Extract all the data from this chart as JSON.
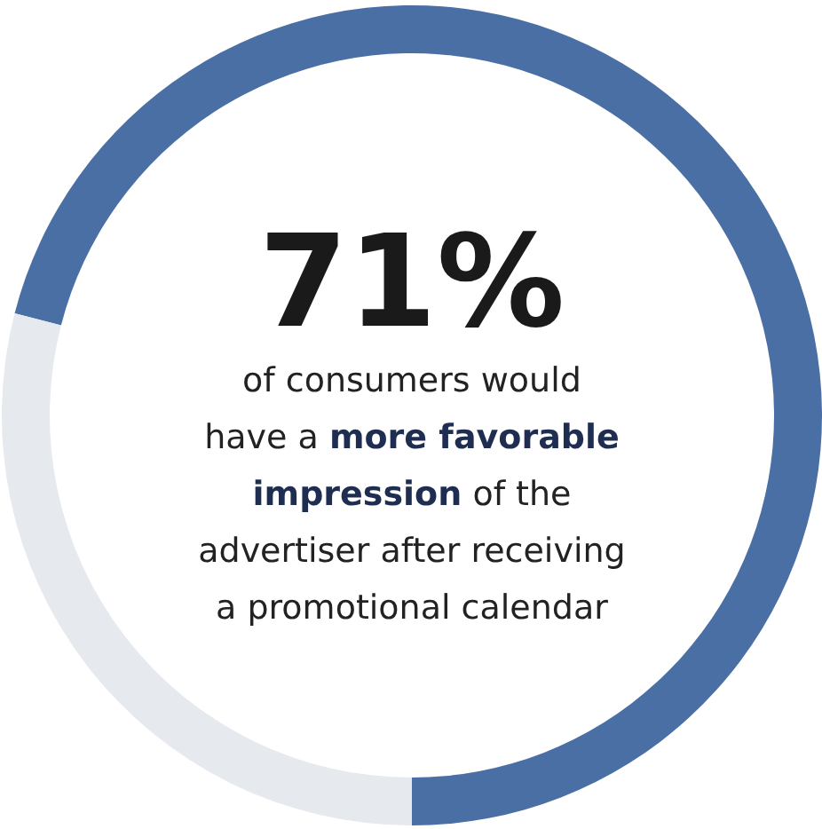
{
  "chart_data": {
    "type": "donut",
    "categories": [
      null,
      null
    ],
    "values": [
      71,
      29
    ],
    "colors": [
      "#4a6fa5",
      "#e6e9ed"
    ],
    "value_labels": [
      "71%",
      null
    ],
    "annotations": [
      "of consumers would",
      "have a",
      "more favorable",
      "impression",
      "of the",
      "advertiser after receiving",
      "a promotional calendar"
    ]
  }
}
